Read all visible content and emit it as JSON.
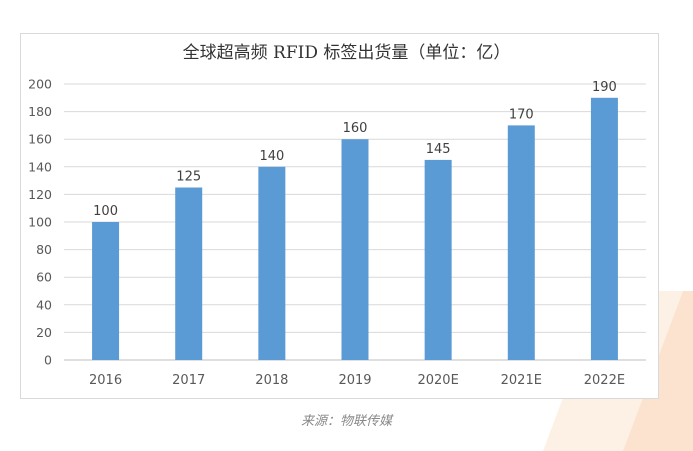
{
  "chart_data": {
    "type": "bar",
    "title": "全球超高频 RFID 标签出货量（单位：亿）",
    "categories": [
      "2016",
      "2017",
      "2018",
      "2019",
      "2020E",
      "2021E",
      "2022E"
    ],
    "values": [
      100,
      125,
      140,
      160,
      145,
      170,
      190
    ],
    "yticks": [
      0,
      20,
      40,
      60,
      80,
      100,
      120,
      140,
      160,
      180,
      200
    ],
    "ylim": [
      0,
      200
    ],
    "grid": true,
    "bar_color": "#5b9bd5",
    "data_labels": true
  },
  "source": "来源：物联传媒"
}
